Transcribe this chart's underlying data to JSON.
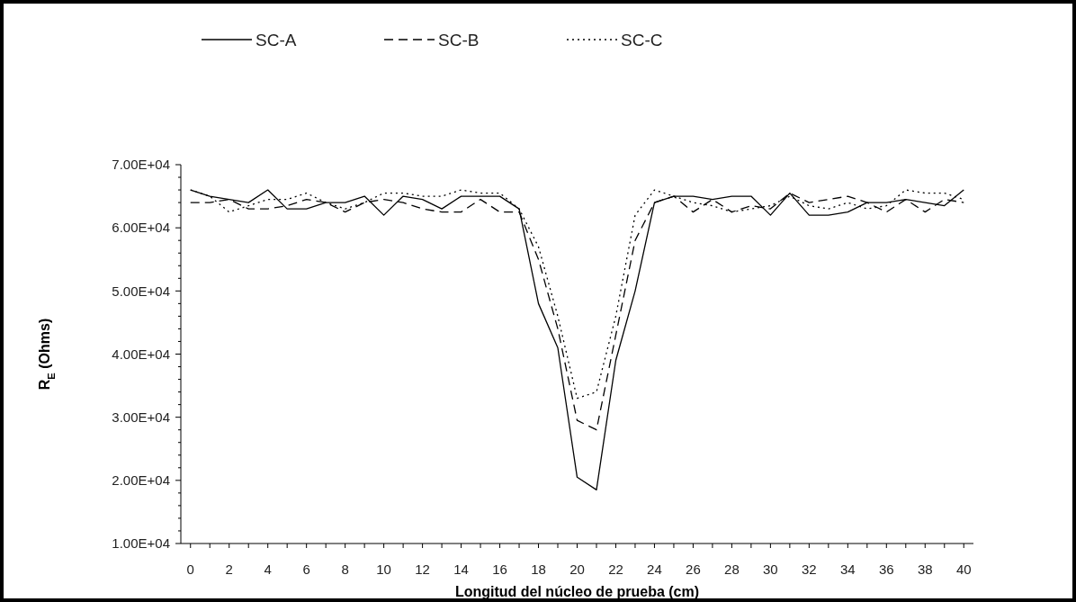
{
  "chart_data": {
    "type": "line",
    "xlabel": "Longitud del núcleo de prueba (cm)",
    "ylabel": "R$_{E}$  (Ohms)",
    "x": [
      0,
      1,
      2,
      3,
      4,
      5,
      6,
      7,
      8,
      9,
      10,
      11,
      12,
      13,
      14,
      15,
      16,
      17,
      18,
      19,
      20,
      21,
      22,
      23,
      24,
      25,
      26,
      27,
      28,
      29,
      30,
      31,
      32,
      33,
      34,
      35,
      36,
      37,
      38,
      39,
      40
    ],
    "series": [
      {
        "name": "SC-A",
        "color": "#000000",
        "line_style": "solid",
        "values": [
          66000,
          65000,
          64500,
          64000,
          66000,
          63000,
          63000,
          64000,
          64000,
          65000,
          62000,
          65000,
          64500,
          63000,
          65000,
          65000,
          65000,
          63000,
          48000,
          41000,
          20500,
          18500,
          39000,
          50000,
          64000,
          65000,
          65000,
          64500,
          65000,
          65000,
          62000,
          65500,
          62000,
          62000,
          62500,
          64000,
          64000,
          64500,
          64000,
          63500,
          66000
        ]
      },
      {
        "name": "SC-B",
        "color": "#000000",
        "line_style": "dashed",
        "values": [
          64000,
          64000,
          64500,
          63000,
          63000,
          63500,
          64500,
          64000,
          62500,
          64000,
          64500,
          64000,
          63000,
          62500,
          62500,
          64500,
          62500,
          62500,
          55000,
          44000,
          29500,
          28000,
          43000,
          58000,
          64000,
          65000,
          62500,
          64500,
          62500,
          63500,
          63000,
          65500,
          64000,
          64500,
          65000,
          64000,
          62500,
          64500,
          62500,
          64500,
          64000
        ]
      },
      {
        "name": "SC-C",
        "color": "#000000",
        "line_style": "dotted",
        "values": [
          66000,
          65000,
          62500,
          63500,
          64500,
          64500,
          65500,
          64000,
          63000,
          64000,
          65500,
          65500,
          65000,
          65000,
          66000,
          65500,
          65500,
          63000,
          57000,
          46000,
          33000,
          34000,
          46000,
          62000,
          66000,
          65000,
          64000,
          63500,
          62500,
          63000,
          63500,
          65000,
          63500,
          63000,
          64000,
          63000,
          63500,
          66000,
          65500,
          65500,
          64500
        ]
      }
    ],
    "xlim": [
      -0.5,
      40.5
    ],
    "xticks": [
      0,
      {
        "value": 1,
        "label": null
      },
      2,
      {
        "value": 3,
        "label": null
      },
      4,
      {
        "value": 5,
        "label": null
      },
      6,
      {
        "value": 7,
        "label": null
      },
      8,
      {
        "value": 9,
        "label": null
      },
      10,
      {
        "value": 11,
        "label": null
      },
      12,
      {
        "value": 13,
        "label": null
      },
      14,
      {
        "value": 15,
        "label": null
      },
      16,
      {
        "value": 17,
        "label": null
      },
      18,
      {
        "value": 19,
        "label": null
      },
      20,
      {
        "value": 21,
        "label": null
      },
      22,
      {
        "value": 23,
        "label": null
      },
      24,
      {
        "value": 25,
        "label": null
      },
      26,
      {
        "value": 27,
        "label": null
      },
      28,
      {
        "value": 29,
        "label": null
      },
      30,
      {
        "value": 31,
        "label": null
      },
      32,
      {
        "value": 33,
        "label": null
      },
      34,
      {
        "value": 35,
        "label": null
      },
      36,
      {
        "value": 37,
        "label": null
      },
      38,
      {
        "value": 39,
        "label": null
      },
      40
    ],
    "ylim": [
      10000,
      70000
    ],
    "yticks": [
      {
        "value": 10000,
        "label": "1.00E+04"
      },
      {
        "value": 20000,
        "label": "2.00E+04"
      },
      {
        "value": 30000,
        "label": "3.00E+04"
      },
      {
        "value": 40000,
        "label": "4.00E+04"
      },
      {
        "value": 50000,
        "label": "5.00E+04"
      },
      {
        "value": 60000,
        "label": "6.00E+04"
      },
      {
        "value": 70000,
        "label": "7.00E+04"
      }
    ],
    "grid": false,
    "legend": "top",
    "marker": "none"
  }
}
